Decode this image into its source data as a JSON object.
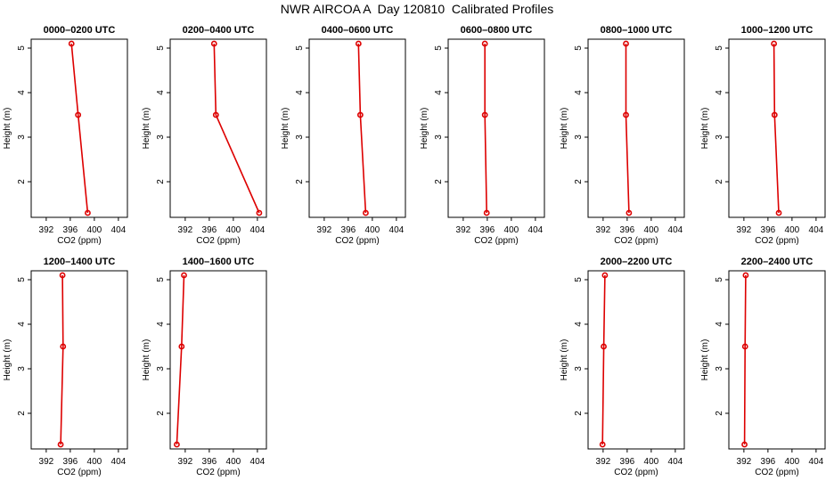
{
  "title": "NWR AIRCOA A  Day 120810  Calibrated Profiles",
  "colors": {
    "line": "#dd0000",
    "marker": "#dd0000",
    "axis": "#000000",
    "background": "#ffffff"
  },
  "chart_data": [
    {
      "type": "line",
      "title": "0000–0200 UTC",
      "row": 0,
      "col": 0,
      "xlabel": "CO2 (ppm)",
      "ylabel": "Height (m)",
      "xlim": [
        389.5,
        405.5
      ],
      "ylim": [
        1.2,
        5.2
      ],
      "xticks": [
        392,
        396,
        400,
        404
      ],
      "yticks": [
        2,
        3,
        4,
        5
      ],
      "grid": false,
      "series": [
        {
          "x": [
            396.2,
            397.3,
            398.9
          ],
          "y": [
            5.1,
            3.5,
            1.3
          ]
        }
      ]
    },
    {
      "type": "line",
      "title": "0200–0400 UTC",
      "row": 0,
      "col": 1,
      "xlabel": "CO2 (ppm)",
      "ylabel": "Height (m)",
      "xlim": [
        389.5,
        405.5
      ],
      "ylim": [
        1.2,
        5.2
      ],
      "xticks": [
        392,
        396,
        400,
        404
      ],
      "yticks": [
        2,
        3,
        4,
        5
      ],
      "grid": false,
      "series": [
        {
          "x": [
            396.8,
            397.1,
            404.3
          ],
          "y": [
            5.1,
            3.5,
            1.3
          ]
        }
      ]
    },
    {
      "type": "line",
      "title": "0400–0600 UTC",
      "row": 0,
      "col": 2,
      "xlabel": "CO2 (ppm)",
      "ylabel": "Height (m)",
      "xlim": [
        389.5,
        405.5
      ],
      "ylim": [
        1.2,
        5.2
      ],
      "xticks": [
        392,
        396,
        400,
        404
      ],
      "yticks": [
        2,
        3,
        4,
        5
      ],
      "grid": false,
      "series": [
        {
          "x": [
            397.7,
            398.0,
            398.9
          ],
          "y": [
            5.1,
            3.5,
            1.3
          ]
        }
      ]
    },
    {
      "type": "line",
      "title": "0600–0800 UTC",
      "row": 0,
      "col": 3,
      "xlabel": "CO2 (ppm)",
      "ylabel": "Height (m)",
      "xlim": [
        389.5,
        405.5
      ],
      "ylim": [
        1.2,
        5.2
      ],
      "xticks": [
        392,
        396,
        400,
        404
      ],
      "yticks": [
        2,
        3,
        4,
        5
      ],
      "grid": false,
      "series": [
        {
          "x": [
            395.6,
            395.6,
            395.9
          ],
          "y": [
            5.1,
            3.5,
            1.3
          ]
        }
      ]
    },
    {
      "type": "line",
      "title": "0800–1000 UTC",
      "row": 0,
      "col": 4,
      "xlabel": "CO2 (ppm)",
      "ylabel": "Height (m)",
      "xlim": [
        389.5,
        405.5
      ],
      "ylim": [
        1.2,
        5.2
      ],
      "xticks": [
        392,
        396,
        400,
        404
      ],
      "yticks": [
        2,
        3,
        4,
        5
      ],
      "grid": false,
      "series": [
        {
          "x": [
            395.8,
            395.8,
            396.3
          ],
          "y": [
            5.1,
            3.5,
            1.3
          ]
        }
      ]
    },
    {
      "type": "line",
      "title": "1000–1200 UTC",
      "row": 0,
      "col": 5,
      "xlabel": "CO2 (ppm)",
      "ylabel": "Height (m)",
      "xlim": [
        389.5,
        405.5
      ],
      "ylim": [
        1.2,
        5.2
      ],
      "xticks": [
        392,
        396,
        400,
        404
      ],
      "yticks": [
        2,
        3,
        4,
        5
      ],
      "grid": false,
      "series": [
        {
          "x": [
            397.0,
            397.1,
            397.8
          ],
          "y": [
            5.1,
            3.5,
            1.3
          ]
        }
      ]
    },
    {
      "type": "line",
      "title": "1200–1400 UTC",
      "row": 1,
      "col": 0,
      "xlabel": "CO2 (ppm)",
      "ylabel": "Height (m)",
      "xlim": [
        389.5,
        405.5
      ],
      "ylim": [
        1.2,
        5.2
      ],
      "xticks": [
        392,
        396,
        400,
        404
      ],
      "yticks": [
        2,
        3,
        4,
        5
      ],
      "grid": false,
      "series": [
        {
          "x": [
            394.7,
            394.8,
            394.4
          ],
          "y": [
            5.1,
            3.5,
            1.3
          ]
        }
      ]
    },
    {
      "type": "line",
      "title": "1400–1600 UTC",
      "row": 1,
      "col": 1,
      "xlabel": "CO2 (ppm)",
      "ylabel": "Height (m)",
      "xlim": [
        389.5,
        405.5
      ],
      "ylim": [
        1.2,
        5.2
      ],
      "xticks": [
        392,
        396,
        400,
        404
      ],
      "yticks": [
        2,
        3,
        4,
        5
      ],
      "grid": false,
      "series": [
        {
          "x": [
            391.8,
            391.4,
            390.6
          ],
          "y": [
            5.1,
            3.5,
            1.3
          ]
        }
      ]
    },
    {
      "type": "line",
      "title": "2000–2200 UTC",
      "row": 1,
      "col": 4,
      "xlabel": "CO2 (ppm)",
      "ylabel": "Height (m)",
      "xlim": [
        389.5,
        405.5
      ],
      "ylim": [
        1.2,
        5.2
      ],
      "xticks": [
        392,
        396,
        400,
        404
      ],
      "yticks": [
        2,
        3,
        4,
        5
      ],
      "grid": false,
      "series": [
        {
          "x": [
            392.3,
            392.1,
            391.9
          ],
          "y": [
            5.1,
            3.5,
            1.3
          ]
        }
      ]
    },
    {
      "type": "line",
      "title": "2200–2400 UTC",
      "row": 1,
      "col": 5,
      "xlabel": "CO2 (ppm)",
      "ylabel": "Height (m)",
      "xlim": [
        389.5,
        405.5
      ],
      "ylim": [
        1.2,
        5.2
      ],
      "xticks": [
        392,
        396,
        400,
        404
      ],
      "yticks": [
        2,
        3,
        4,
        5
      ],
      "grid": false,
      "series": [
        {
          "x": [
            392.3,
            392.2,
            392.1
          ],
          "y": [
            5.1,
            3.5,
            1.3
          ]
        }
      ]
    }
  ]
}
